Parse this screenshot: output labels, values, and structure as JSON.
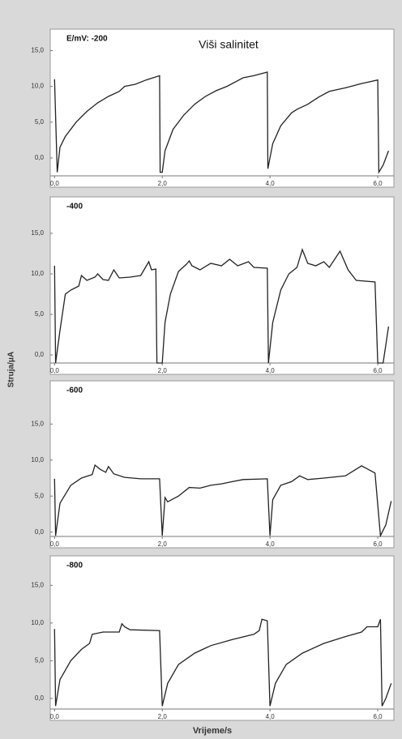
{
  "ylabel": "Struja/μA",
  "xlabel": "Vrijeme/s",
  "chart_data": [
    {
      "type": "line",
      "title": "Viši salinitet",
      "label": "E/mV: -200",
      "color": "#222222",
      "xlim": [
        -0.08,
        6.3
      ],
      "ylim": [
        -2.5,
        18
      ],
      "xticks": [
        {
          "value": 0,
          "label": "0,0"
        },
        {
          "value": 2,
          "label": "2,0"
        },
        {
          "value": 4,
          "label": "4,0"
        },
        {
          "value": 6,
          "label": "6,0"
        }
      ],
      "yticks": [
        {
          "value": 0,
          "label": "0,0"
        },
        {
          "value": 5,
          "label": "5,0"
        },
        {
          "value": 10,
          "label": "10,0"
        },
        {
          "value": 15,
          "label": "15,0"
        }
      ],
      "x": [
        0,
        0.05,
        0.1,
        0.2,
        0.4,
        0.6,
        0.8,
        1.0,
        1.2,
        1.3,
        1.5,
        1.7,
        1.95,
        1.96,
        2.0,
        2.05,
        2.2,
        2.4,
        2.6,
        2.8,
        3.0,
        3.2,
        3.4,
        3.5,
        3.7,
        3.95,
        3.96,
        4.05,
        4.2,
        4.4,
        4.5,
        4.7,
        4.9,
        5.1,
        5.4,
        5.7,
        6.0,
        6.02,
        6.1,
        6.2
      ],
      "values": [
        11,
        -2,
        1.5,
        3,
        5,
        6.5,
        7.7,
        8.6,
        9.3,
        10,
        10.3,
        10.9,
        11.5,
        -2,
        -2,
        1,
        4,
        6,
        7.5,
        8.6,
        9.4,
        10,
        10.8,
        11.2,
        11.5,
        12,
        -1.5,
        2,
        4.5,
        6.3,
        6.8,
        7.5,
        8.5,
        9.3,
        9.8,
        10.4,
        10.9,
        -2,
        -1,
        1
      ]
    },
    {
      "type": "line",
      "label": "-400",
      "color": "#222222",
      "xlim": [
        -0.08,
        6.3
      ],
      "ylim": [
        -1,
        19.5
      ],
      "xticks": [
        {
          "value": 0,
          "label": "0,0"
        },
        {
          "value": 2,
          "label": "2,0"
        },
        {
          "value": 4,
          "label": "4,0"
        },
        {
          "value": 6,
          "label": "6,0"
        }
      ],
      "yticks": [
        {
          "value": 0,
          "label": "0,0"
        },
        {
          "value": 5,
          "label": "5,0"
        },
        {
          "value": 10,
          "label": "10,0"
        },
        {
          "value": 15,
          "label": "15,0"
        }
      ],
      "x": [
        0,
        0.02,
        0.1,
        0.2,
        0.3,
        0.45,
        0.5,
        0.6,
        0.75,
        0.8,
        0.9,
        1.0,
        1.1,
        1.2,
        1.4,
        1.6,
        1.75,
        1.8,
        1.88,
        1.9,
        2.0,
        2.05,
        2.15,
        2.3,
        2.45,
        2.5,
        2.55,
        2.7,
        2.9,
        3.1,
        3.25,
        3.4,
        3.6,
        3.7,
        3.95,
        3.97,
        4.05,
        4.2,
        4.35,
        4.5,
        4.6,
        4.7,
        4.85,
        5.0,
        5.1,
        5.3,
        5.45,
        5.6,
        5.95,
        6.0,
        6.1,
        6.2
      ],
      "values": [
        11,
        -1,
        3,
        7.5,
        8,
        8.5,
        9.8,
        9.2,
        9.6,
        10,
        9.3,
        9.2,
        10.5,
        9.5,
        9.6,
        9.8,
        11.5,
        10.5,
        10.6,
        -1,
        -1,
        4,
        7.5,
        10.3,
        11.2,
        11.6,
        11,
        10.5,
        11.3,
        11,
        11.8,
        11,
        11.5,
        10.8,
        10.7,
        -1,
        4,
        8,
        10,
        10.8,
        13,
        11.3,
        11,
        11.5,
        10.8,
        12.8,
        10.5,
        9.2,
        9,
        -1,
        -1,
        3.5
      ]
    },
    {
      "type": "line",
      "label": "-600",
      "color": "#222222",
      "xlim": [
        -0.08,
        6.3
      ],
      "ylim": [
        -0.6,
        21
      ],
      "xticks": [
        {
          "value": 0,
          "label": "0,0"
        },
        {
          "value": 2,
          "label": "2,0"
        },
        {
          "value": 4,
          "label": "4,0"
        },
        {
          "value": 6,
          "label": "6,0"
        }
      ],
      "yticks": [
        {
          "value": 0,
          "label": "0,0"
        },
        {
          "value": 5,
          "label": "5,0"
        },
        {
          "value": 10,
          "label": "10,0"
        },
        {
          "value": 15,
          "label": "15,0"
        }
      ],
      "x": [
        0,
        0.02,
        0.1,
        0.3,
        0.5,
        0.7,
        0.75,
        0.85,
        0.95,
        1.0,
        1.1,
        1.3,
        1.6,
        1.95,
        2.0,
        2.05,
        2.1,
        2.3,
        2.5,
        2.7,
        2.9,
        3.1,
        3.3,
        3.5,
        3.95,
        4.0,
        4.05,
        4.2,
        4.4,
        4.55,
        4.7,
        5.0,
        5.4,
        5.7,
        5.8,
        5.95,
        6.05,
        6.15,
        6.25
      ],
      "values": [
        7.4,
        -0.5,
        4,
        6.5,
        7.5,
        8,
        9.3,
        8.7,
        8.3,
        9.1,
        8.1,
        7.6,
        7.4,
        7.4,
        -0.5,
        4.8,
        4.2,
        5,
        6.2,
        6.1,
        6.5,
        6.7,
        7,
        7.3,
        7.4,
        -0.5,
        4.5,
        6.5,
        7,
        7.8,
        7.3,
        7.5,
        7.8,
        9.2,
        8.8,
        8.2,
        -0.5,
        1,
        4.3
      ]
    },
    {
      "type": "line",
      "label": "-800",
      "color": "#222222",
      "xlim": [
        -0.08,
        6.3
      ],
      "ylim": [
        -1.4,
        18.9
      ],
      "xticks": [
        {
          "value": 0,
          "label": "0,0"
        },
        {
          "value": 2,
          "label": "2,0"
        },
        {
          "value": 4,
          "label": "4,0"
        },
        {
          "value": 6,
          "label": "6,0"
        }
      ],
      "yticks": [
        {
          "value": 0,
          "label": "0,0"
        },
        {
          "value": 5,
          "label": "5,0"
        },
        {
          "value": 10,
          "label": "10,0"
        },
        {
          "value": 15,
          "label": "15,0"
        }
      ],
      "x": [
        0,
        0.02,
        0.1,
        0.3,
        0.5,
        0.65,
        0.7,
        0.9,
        1.2,
        1.25,
        1.3,
        1.4,
        1.95,
        2.0,
        2.1,
        2.3,
        2.6,
        2.9,
        3.3,
        3.7,
        3.8,
        3.85,
        3.95,
        4.0,
        4.1,
        4.3,
        4.6,
        5.0,
        5.4,
        5.7,
        5.8,
        6.0,
        6.05,
        6.08,
        6.15,
        6.25
      ],
      "values": [
        9.2,
        -1,
        2.5,
        5,
        6.5,
        7.3,
        8.5,
        8.8,
        8.8,
        9.9,
        9.5,
        9.1,
        9,
        -1,
        2,
        4.5,
        6,
        7,
        7.8,
        8.5,
        9,
        10.5,
        10.3,
        -1,
        2,
        4.5,
        6,
        7.3,
        8.2,
        8.8,
        9.5,
        9.5,
        10.5,
        -1,
        0,
        2
      ]
    }
  ]
}
